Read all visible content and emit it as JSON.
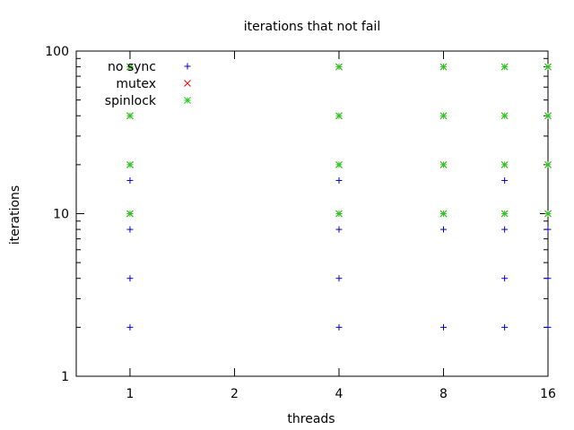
{
  "chart_data": {
    "type": "scatter",
    "title": "iterations that not fail",
    "xlabel": "threads",
    "ylabel": "iterations",
    "x_scale": "log2",
    "y_scale": "log10",
    "xlim": [
      0.7,
      16
    ],
    "ylim": [
      1,
      100
    ],
    "x_ticks": [
      1,
      2,
      4,
      8,
      16
    ],
    "x_tick_labels": [
      "1",
      "2",
      "4",
      "8",
      "16"
    ],
    "y_ticks": [
      1,
      10,
      100
    ],
    "y_tick_labels": [
      "1",
      "10",
      "100"
    ],
    "grid": false,
    "legend_position": "top-left",
    "series": [
      {
        "name": "no sync",
        "color": "#0000cc",
        "marker": "plus",
        "points": [
          [
            1,
            2
          ],
          [
            1,
            4
          ],
          [
            1,
            8
          ],
          [
            1,
            16
          ],
          [
            4,
            2
          ],
          [
            4,
            4
          ],
          [
            4,
            8
          ],
          [
            4,
            16
          ],
          [
            8,
            2
          ],
          [
            8,
            8
          ],
          [
            12,
            2
          ],
          [
            12,
            4
          ],
          [
            12,
            8
          ],
          [
            12,
            16
          ],
          [
            16,
            2
          ],
          [
            16,
            4
          ],
          [
            16,
            8
          ]
        ]
      },
      {
        "name": "mutex",
        "color": "#ff0000",
        "marker": "cross",
        "points": [
          [
            1,
            10
          ],
          [
            1,
            20
          ],
          [
            1,
            40
          ],
          [
            1,
            80
          ],
          [
            4,
            10
          ],
          [
            4,
            20
          ],
          [
            4,
            40
          ],
          [
            4,
            80
          ],
          [
            8,
            10
          ],
          [
            8,
            20
          ],
          [
            8,
            40
          ],
          [
            8,
            80
          ],
          [
            12,
            10
          ],
          [
            12,
            20
          ],
          [
            12,
            40
          ],
          [
            12,
            80
          ],
          [
            16,
            10
          ],
          [
            16,
            20
          ],
          [
            16,
            40
          ],
          [
            16,
            80
          ]
        ]
      },
      {
        "name": "spinlock",
        "color": "#22cc22",
        "marker": "star",
        "points": [
          [
            1,
            10
          ],
          [
            1,
            20
          ],
          [
            1,
            40
          ],
          [
            1,
            80
          ],
          [
            4,
            10
          ],
          [
            4,
            20
          ],
          [
            4,
            40
          ],
          [
            4,
            80
          ],
          [
            8,
            10
          ],
          [
            8,
            20
          ],
          [
            8,
            40
          ],
          [
            8,
            80
          ],
          [
            12,
            10
          ],
          [
            12,
            20
          ],
          [
            12,
            40
          ],
          [
            12,
            80
          ],
          [
            16,
            10
          ],
          [
            16,
            20
          ],
          [
            16,
            40
          ],
          [
            16,
            80
          ]
        ]
      }
    ]
  }
}
